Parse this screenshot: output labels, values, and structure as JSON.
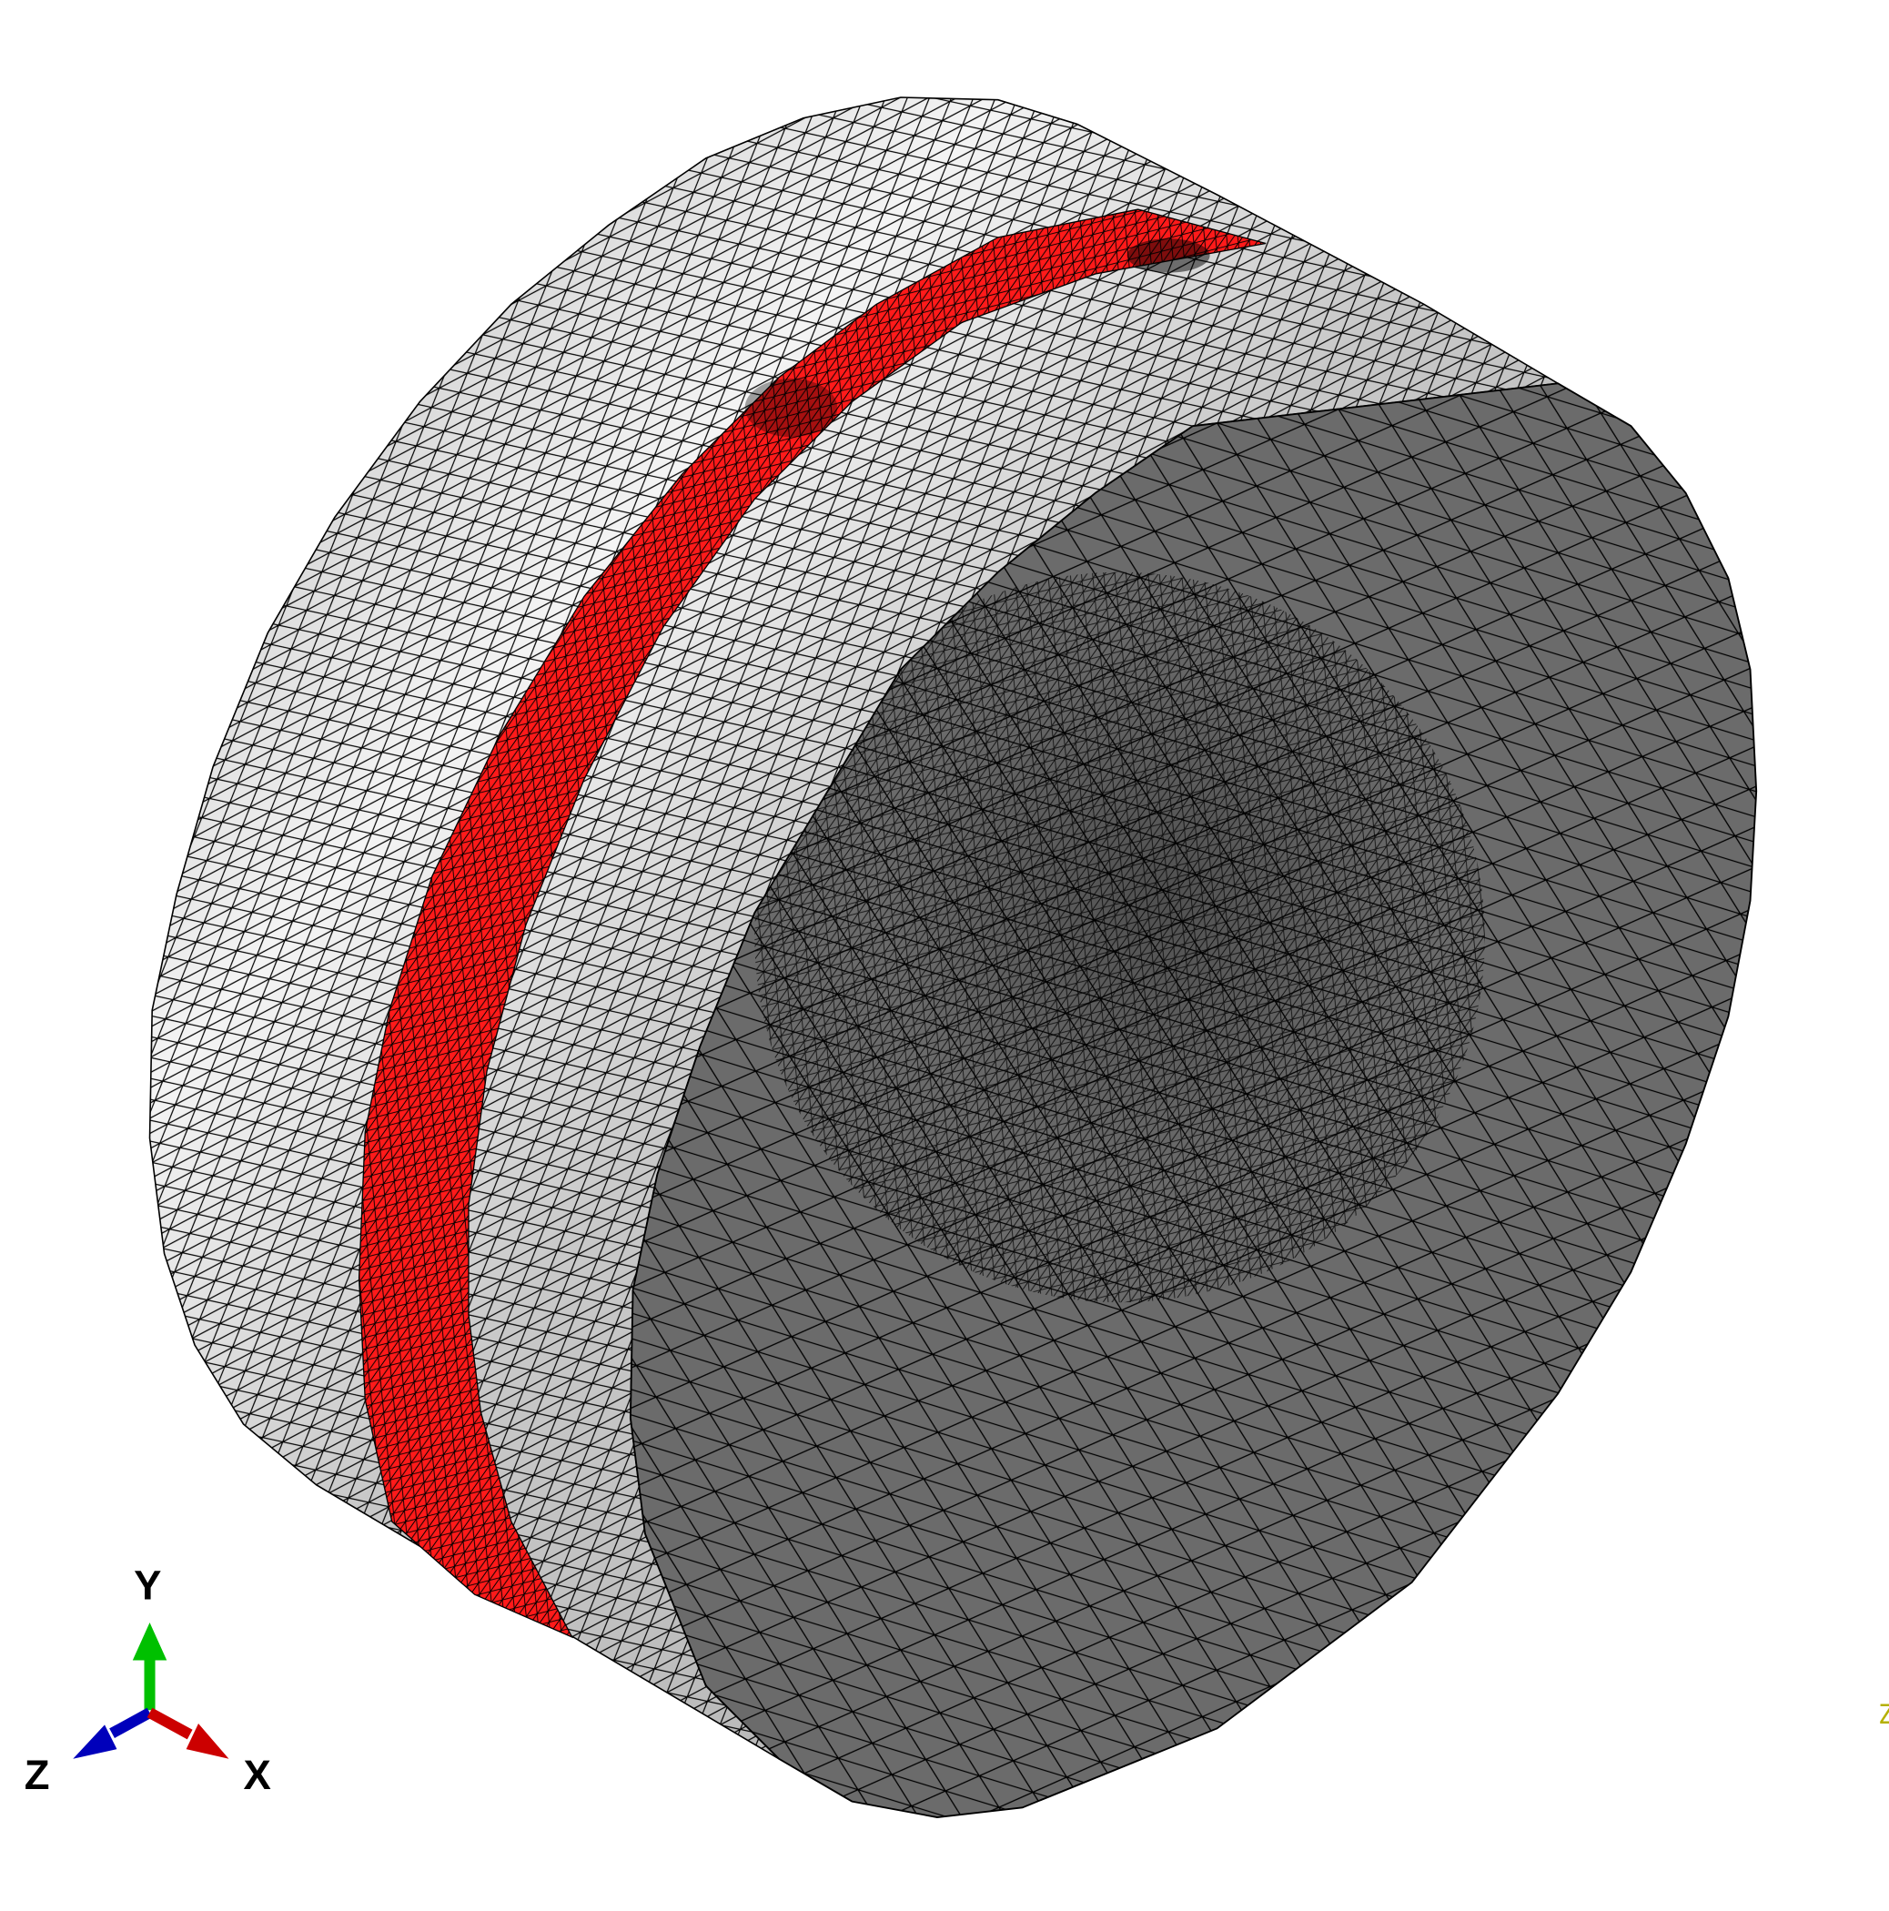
{
  "viewport": {
    "background": "#ffffff",
    "model": {
      "cut_face_color": "#6b6b6b",
      "side_color": "#b8b8b8",
      "side_highlight_color": "#f2f2f2",
      "band_color": "#ff1a1a",
      "mesh_line_color": "#000000"
    },
    "triad": {
      "x_label": "X",
      "y_label": "Y",
      "z_label": "Z",
      "x_color": "#cc0000",
      "y_color": "#00c000",
      "z_color": "#0000bb"
    },
    "edge_text": {
      "text": "Z",
      "color": "#b5b000"
    }
  }
}
